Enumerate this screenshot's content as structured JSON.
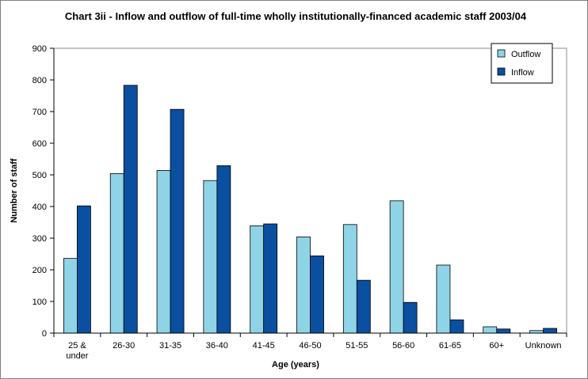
{
  "chart_data": {
    "type": "bar",
    "title": "Chart 3ii - Inflow and outflow of full-time wholly institutionally-financed academic staff 2003/04",
    "xlabel": "Age (years)",
    "ylabel": "Number of staff",
    "ylim": [
      0,
      900
    ],
    "yticks": [
      "0",
      "100",
      "200",
      "300",
      "400",
      "500",
      "600",
      "700",
      "800",
      "900"
    ],
    "categories": [
      [
        "25 &",
        "under"
      ],
      [
        "26-30"
      ],
      [
        "31-35"
      ],
      [
        "36-40"
      ],
      [
        "41-45"
      ],
      [
        "46-50"
      ],
      [
        "51-55"
      ],
      [
        "56-60"
      ],
      [
        "61-65"
      ],
      [
        "60+"
      ],
      [
        "Unknown"
      ]
    ],
    "series": [
      {
        "name": "Outflow",
        "color": "#8fd3e6",
        "values": [
          236,
          504,
          514,
          482,
          339,
          304,
          343,
          418,
          215,
          20,
          8
        ]
      },
      {
        "name": "Inflow",
        "color": "#0b4fa0",
        "values": [
          402,
          783,
          707,
          529,
          345,
          244,
          167,
          97,
          42,
          13,
          15
        ]
      }
    ],
    "legend_position": "top-right",
    "grid": false
  }
}
